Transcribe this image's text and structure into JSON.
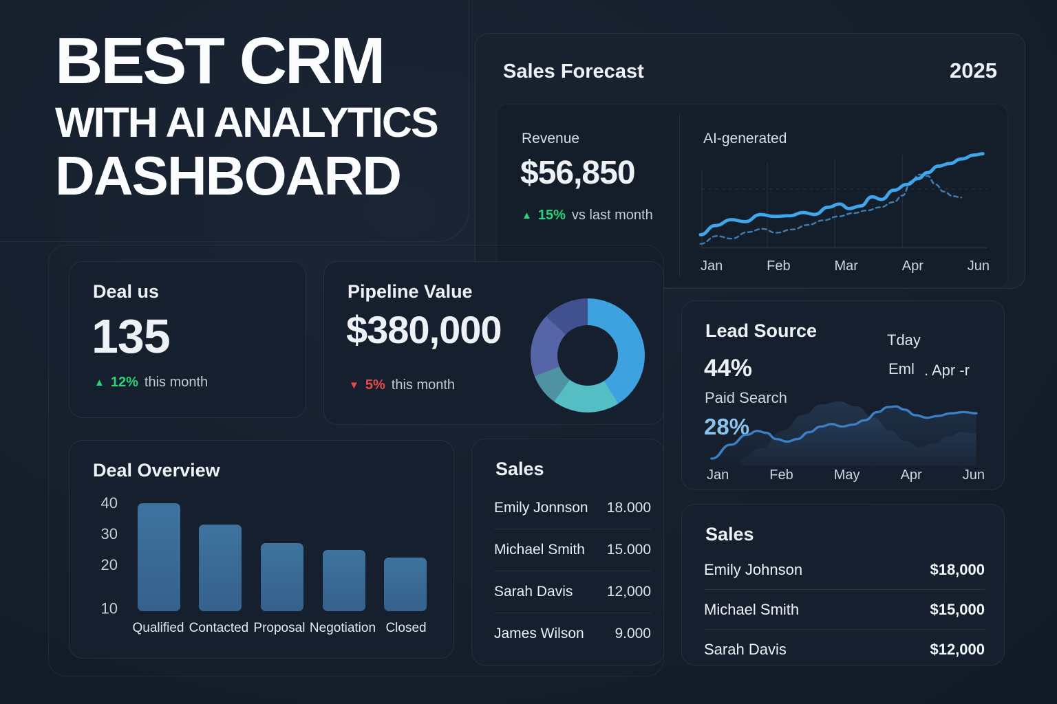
{
  "hero": {
    "line1": "BEST CRM",
    "line2": "WITH AI ANALYTICS",
    "line3": "DASHBOARD"
  },
  "icons": {
    "arrow_up": "▲",
    "arrow_down": "▼"
  },
  "forecast": {
    "title": "Sales Forecast",
    "year": "2025",
    "revenue_label": "Revenue",
    "revenue_value": "$56,850",
    "delta_pct": "15%",
    "delta_text": "vs last month",
    "ai_label": "AI-generated"
  },
  "deal_status": {
    "title": "Deal us",
    "value": "135",
    "delta_pct": "12%",
    "delta_text": "this month"
  },
  "pipeline": {
    "title": "Pipeline Value",
    "value": "$380,000",
    "delta_pct": "5%",
    "delta_text": "this month"
  },
  "lead_source": {
    "title": "Lead Source",
    "primary_pct": "44%",
    "primary_label": "Paid Search",
    "secondary_pct": "28%",
    "annotation1": "Tday",
    "annotation2": "Eml",
    "annotation3": ". Apr -r"
  },
  "deal_overview": {
    "title": "Deal Overview"
  },
  "sales_list": {
    "title": "Sales",
    "rows": [
      {
        "name": "Emily Jonnson",
        "value": "18.000"
      },
      {
        "name": "Michael Smith",
        "value": "15.000"
      },
      {
        "name": "Sarah Davis",
        "value": "12,000"
      },
      {
        "name": "James Wilson",
        "value": "9.000"
      }
    ]
  },
  "sales_summary": {
    "title": "Sales",
    "rows": [
      {
        "name": "Emily Johnson",
        "value": "$18,000"
      },
      {
        "name": "Michael Smith",
        "value": "$15,000"
      },
      {
        "name": "Sarah Davis",
        "value": "$12,000"
      }
    ]
  },
  "colors": {
    "accent_line_blue": "#3fa6ec",
    "forecast_dashed_blue": "#4e93cc",
    "lead_line_blue": "#3d7fc4",
    "green_up": "#2bd479",
    "red_down": "#e84b4b",
    "light_blue_pct": "#8ac2ec",
    "bar_fill": "#3a6e9b"
  },
  "chart_data": {
    "forecast_line": {
      "type": "line",
      "x_labels": [
        "Jan",
        "Feb",
        "Mar",
        "Apr",
        "Jun"
      ],
      "note": "no numeric y-axis shown; points are viewbox coords (y inverted, 0=top)",
      "series": [
        {
          "name": "actual",
          "style": "solid",
          "points": [
            [
              6,
              132
            ],
            [
              28,
              118
            ],
            [
              52,
              109
            ],
            [
              72,
              112
            ],
            [
              95,
              101
            ],
            [
              115,
              104
            ],
            [
              138,
              103
            ],
            [
              158,
              98
            ],
            [
              175,
              101
            ],
            [
              195,
              90
            ],
            [
              212,
              85
            ],
            [
              226,
              92
            ],
            [
              243,
              88
            ],
            [
              260,
              74
            ],
            [
              274,
              78
            ],
            [
              292,
              64
            ],
            [
              312,
              55
            ],
            [
              328,
              46
            ],
            [
              342,
              37
            ],
            [
              358,
              27
            ],
            [
              375,
              23
            ],
            [
              392,
              16
            ],
            [
              412,
              10
            ],
            [
              424,
              8
            ]
          ]
        },
        {
          "name": "forecast",
          "style": "dashed",
          "points": [
            [
              6,
              146
            ],
            [
              30,
              134
            ],
            [
              52,
              138
            ],
            [
              76,
              128
            ],
            [
              98,
              123
            ],
            [
              118,
              129
            ],
            [
              142,
              124
            ],
            [
              165,
              117
            ],
            [
              188,
              110
            ],
            [
              210,
              104
            ],
            [
              232,
              99
            ],
            [
              252,
              95
            ],
            [
              272,
              90
            ],
            [
              292,
              82
            ],
            [
              305,
              72
            ],
            [
              318,
              50
            ],
            [
              330,
              40
            ],
            [
              342,
              42
            ],
            [
              354,
              55
            ],
            [
              366,
              66
            ],
            [
              380,
              73
            ],
            [
              392,
              75
            ]
          ]
        }
      ]
    },
    "pipeline_donut": {
      "type": "pie",
      "segments": [
        {
          "label": "segment-1",
          "pct": 41,
          "color": "#3fa2e0"
        },
        {
          "label": "segment-2",
          "pct": 19,
          "color": "#55bec5"
        },
        {
          "label": "segment-3",
          "pct": 9,
          "color": "#4f93a3"
        },
        {
          "label": "segment-4",
          "pct": 18,
          "color": "#5565a8"
        },
        {
          "label": "segment-5",
          "pct": 13,
          "color": "#41508e"
        }
      ]
    },
    "lead_source_area": {
      "type": "area",
      "x_labels": [
        "Jan",
        "Feb",
        "May",
        "Apr",
        "Jun"
      ],
      "note": "no numeric y-axis shown; points are viewbox coords (y inverted, 0=top)",
      "series": [
        {
          "name": "paid-search-line",
          "points": [
            [
              5,
              128
            ],
            [
              32,
              106
            ],
            [
              55,
              90
            ],
            [
              70,
              84
            ],
            [
              82,
              87
            ],
            [
              97,
              97
            ],
            [
              112,
              101
            ],
            [
              126,
              97
            ],
            [
              143,
              86
            ],
            [
              160,
              77
            ],
            [
              175,
              73
            ],
            [
              190,
              77
            ],
            [
              205,
              74
            ],
            [
              222,
              67
            ],
            [
              240,
              54
            ],
            [
              255,
              46
            ],
            [
              266,
              45
            ],
            [
              278,
              50
            ],
            [
              294,
              59
            ],
            [
              310,
              63
            ],
            [
              326,
              60
            ],
            [
              344,
              56
            ],
            [
              362,
              54
            ],
            [
              380,
              56
            ]
          ]
        },
        {
          "name": "background-mound",
          "points": [
            [
              45,
              128
            ],
            [
              75,
              112
            ],
            [
              105,
              84
            ],
            [
              135,
              58
            ],
            [
              160,
              42
            ],
            [
              185,
              37
            ],
            [
              210,
              45
            ],
            [
              235,
              63
            ],
            [
              258,
              84
            ],
            [
              280,
              100
            ],
            [
              300,
              110
            ],
            [
              320,
              104
            ],
            [
              340,
              93
            ],
            [
              360,
              86
            ],
            [
              380,
              88
            ]
          ]
        }
      ]
    },
    "deal_overview": {
      "type": "bar",
      "categories": [
        "Qualified",
        "Contacted",
        "Proposal",
        "Negotiation",
        "Closed"
      ],
      "values": [
        40,
        34,
        29,
        27,
        25
      ],
      "yticks": [
        "40",
        "30",
        "20",
        "10"
      ],
      "baseline": 10,
      "ymax": 40,
      "grid": false
    }
  }
}
